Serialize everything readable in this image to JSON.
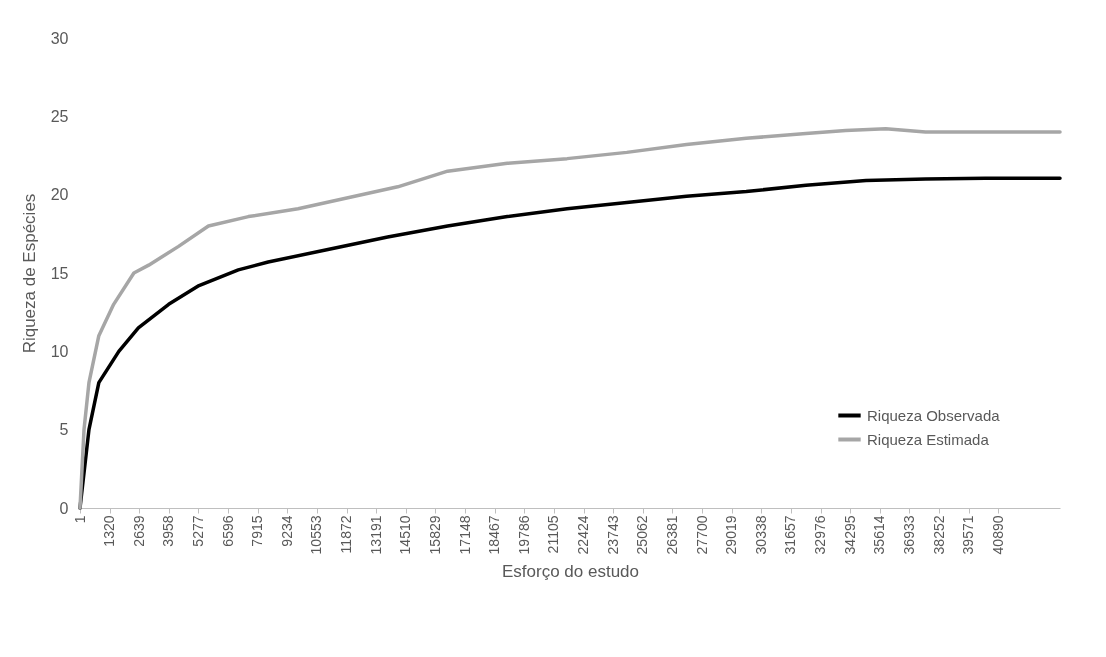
{
  "chart_data": {
    "type": "line",
    "xlabel": "Esforço do estudo",
    "ylabel": "Riqueza de Espécies",
    "xlim": [
      1,
      43640
    ],
    "xticks": [
      1,
      1320,
      2639,
      3958,
      5277,
      6596,
      7915,
      9234,
      10553,
      11872,
      13191,
      14510,
      15829,
      17148,
      18467,
      19786,
      21105,
      22424,
      23743,
      25062,
      26381,
      27700,
      29019,
      30338,
      31657,
      32976,
      34295,
      35614,
      36933,
      38252,
      39571,
      40890
    ],
    "ylim": [
      0,
      30
    ],
    "yticks": [
      0,
      5,
      10,
      15,
      20,
      25,
      30
    ],
    "grid": false,
    "legend": "bottom right",
    "series": [
      {
        "name": "Riqueza Observada",
        "color": "#000000",
        "x": [
          1,
          400,
          840,
          1730,
          2600,
          3950,
          5300,
          7050,
          8380,
          11040,
          13700,
          16370,
          19030,
          21690,
          24350,
          27010,
          29670,
          32330,
          35000,
          37650,
          40310,
          43640
        ],
        "values": [
          0,
          5,
          8,
          10,
          11.5,
          13,
          14.2,
          15.2,
          15.7,
          16.5,
          17.3,
          18,
          18.6,
          19.1,
          19.5,
          19.9,
          20.2,
          20.6,
          20.9,
          21,
          21.05,
          21.05
        ]
      },
      {
        "name": "Riqueza Estimada",
        "color": "#a6a6a6",
        "x": [
          1,
          180,
          400,
          840,
          1500,
          2400,
          3060,
          4390,
          5720,
          7500,
          9710,
          11930,
          14150,
          16370,
          19030,
          21690,
          24350,
          27010,
          29670,
          32330,
          34100,
          35880,
          37650,
          43640
        ],
        "values": [
          0,
          5,
          8,
          11,
          13,
          15,
          15.5,
          16.7,
          18,
          18.6,
          19.1,
          19.8,
          20.5,
          21.5,
          22,
          22.3,
          22.7,
          23.2,
          23.6,
          23.9,
          24.1,
          24.2,
          24,
          24
        ]
      }
    ]
  }
}
